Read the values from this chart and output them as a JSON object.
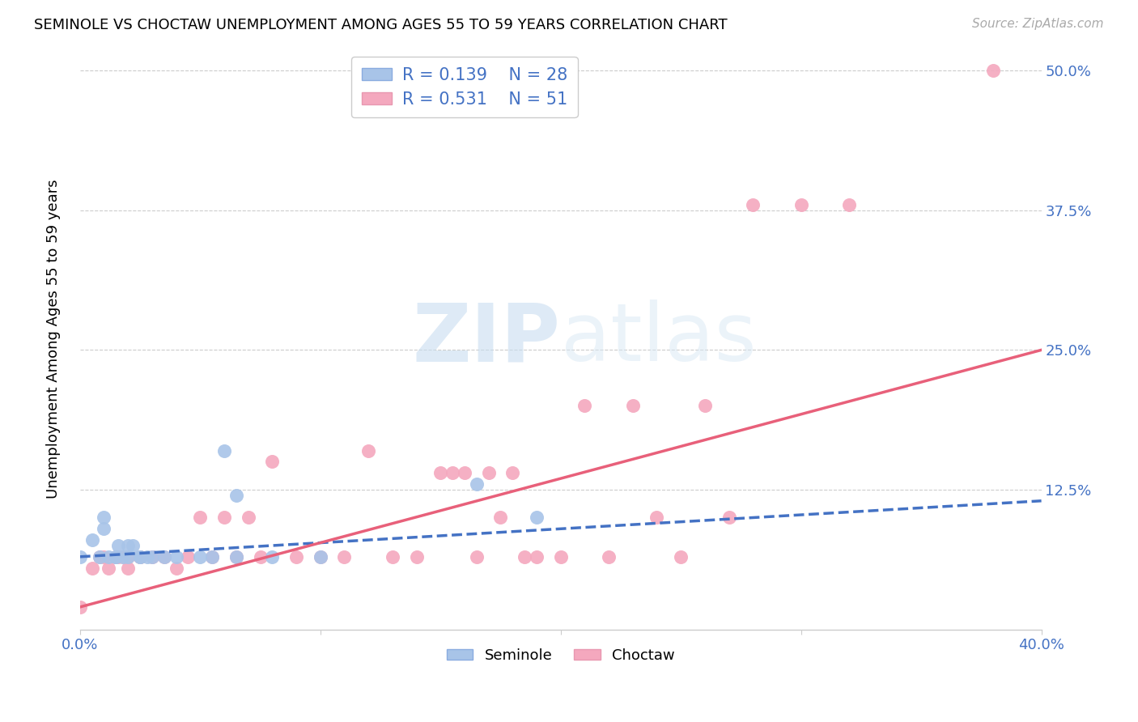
{
  "title": "SEMINOLE VS CHOCTAW UNEMPLOYMENT AMONG AGES 55 TO 59 YEARS CORRELATION CHART",
  "source": "Source: ZipAtlas.com",
  "xlabel_color": "#4472c4",
  "ylabel": "Unemployment Among Ages 55 to 59 years",
  "xlim": [
    0.0,
    0.4
  ],
  "ylim": [
    0.0,
    0.52
  ],
  "xticks": [
    0.0,
    0.1,
    0.2,
    0.3,
    0.4
  ],
  "xtick_labels": [
    "0.0%",
    "",
    "",
    "",
    "40.0%"
  ],
  "ytick_labels_right": [
    "50.0%",
    "37.5%",
    "25.0%",
    "12.5%"
  ],
  "ytick_vals_right": [
    0.5,
    0.375,
    0.25,
    0.125
  ],
  "watermark_zip": "ZIP",
  "watermark_atlas": "atlas",
  "seminole_color": "#a8c4e8",
  "choctaw_color": "#f4a8be",
  "seminole_line_color": "#4472c4",
  "choctaw_line_color": "#e8607a",
  "legend_label1": "Seminole",
  "legend_label2": "Choctaw",
  "seminole_x": [
    0.0,
    0.005,
    0.008,
    0.01,
    0.01,
    0.012,
    0.015,
    0.015,
    0.016,
    0.018,
    0.02,
    0.02,
    0.022,
    0.025,
    0.025,
    0.028,
    0.03,
    0.035,
    0.04,
    0.05,
    0.055,
    0.06,
    0.065,
    0.065,
    0.08,
    0.1,
    0.165,
    0.19
  ],
  "seminole_y": [
    0.065,
    0.08,
    0.065,
    0.09,
    0.1,
    0.065,
    0.065,
    0.065,
    0.075,
    0.065,
    0.065,
    0.075,
    0.075,
    0.065,
    0.065,
    0.065,
    0.065,
    0.065,
    0.065,
    0.065,
    0.065,
    0.16,
    0.12,
    0.065,
    0.065,
    0.065,
    0.13,
    0.1
  ],
  "choctaw_x": [
    0.0,
    0.005,
    0.008,
    0.01,
    0.012,
    0.015,
    0.015,
    0.016,
    0.018,
    0.02,
    0.02,
    0.025,
    0.025,
    0.03,
    0.035,
    0.04,
    0.045,
    0.05,
    0.055,
    0.06,
    0.065,
    0.07,
    0.075,
    0.08,
    0.09,
    0.1,
    0.11,
    0.12,
    0.13,
    0.14,
    0.15,
    0.155,
    0.16,
    0.165,
    0.17,
    0.175,
    0.18,
    0.185,
    0.19,
    0.2,
    0.21,
    0.22,
    0.23,
    0.24,
    0.25,
    0.26,
    0.27,
    0.28,
    0.3,
    0.32,
    0.38
  ],
  "choctaw_y": [
    0.02,
    0.055,
    0.065,
    0.065,
    0.055,
    0.065,
    0.065,
    0.065,
    0.065,
    0.055,
    0.065,
    0.065,
    0.065,
    0.065,
    0.065,
    0.055,
    0.065,
    0.1,
    0.065,
    0.1,
    0.065,
    0.1,
    0.065,
    0.15,
    0.065,
    0.065,
    0.065,
    0.16,
    0.065,
    0.065,
    0.14,
    0.14,
    0.14,
    0.065,
    0.14,
    0.1,
    0.14,
    0.065,
    0.065,
    0.065,
    0.2,
    0.065,
    0.2,
    0.1,
    0.065,
    0.2,
    0.1,
    0.38,
    0.38,
    0.38,
    0.5
  ]
}
